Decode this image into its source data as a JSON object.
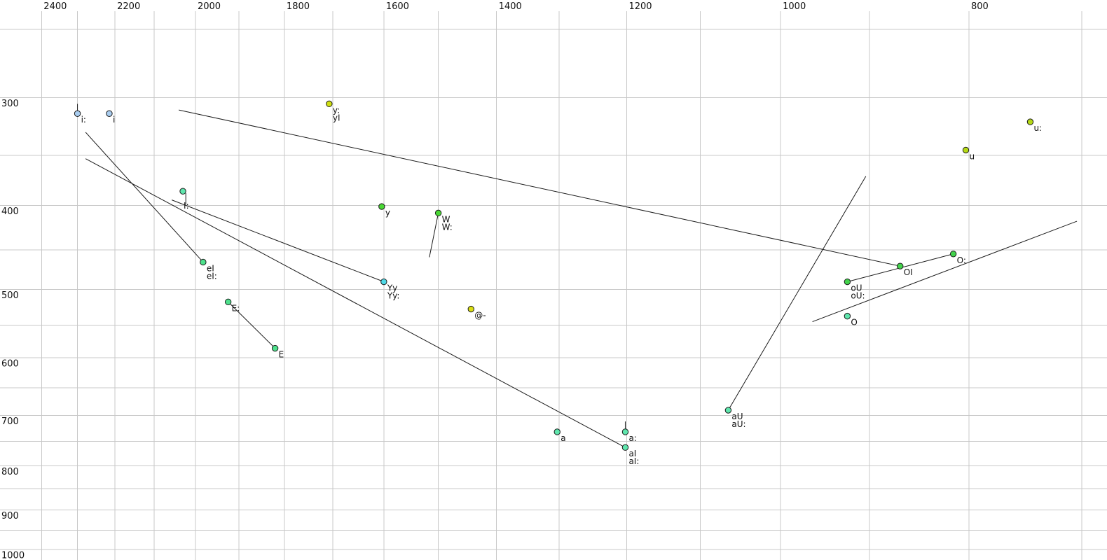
{
  "chart_data": {
    "type": "scatter",
    "title": "",
    "description": "Vowel formant chart: F2 (Hz) on top axis, reversed log scale; F1 (Hz) on left axis, log scale; labeled vowel tokens with trajectory lines",
    "x_axis": {
      "position": "top",
      "scale": "log-reversed",
      "tick_labels": [
        "2400",
        "2200",
        "2000",
        "1800",
        "1600",
        "1400",
        "1200",
        "1000",
        "800"
      ],
      "tick_values": [
        2400,
        2200,
        2000,
        1800,
        1600,
        1400,
        1200,
        1000,
        800
      ],
      "grid_step": 100,
      "grid_min": 700,
      "grid_max": 2400,
      "range_shown": [
        2520,
        680
      ]
    },
    "y_axis": {
      "position": "left",
      "scale": "log",
      "tick_labels": [
        "300",
        "400",
        "500",
        "600",
        "700",
        "800",
        "900",
        "1000"
      ],
      "tick_values": [
        300,
        400,
        500,
        600,
        700,
        800,
        900,
        1000
      ],
      "grid_step": 50,
      "grid_min": 250,
      "grid_max": 1000,
      "range_shown": [
        245,
        1030
      ]
    },
    "grid_color": "#c8c8c8",
    "line_color": "#1a1a1a",
    "points": [
      {
        "name": "i-long",
        "labels": [
          "i:"
        ],
        "f2": 2300,
        "f1": 313,
        "color": "#a9cdf0"
      },
      {
        "name": "i",
        "labels": [
          "i"
        ],
        "f2": 2215,
        "f1": 313,
        "color": "#a9cdf0"
      },
      {
        "name": "I-long",
        "labels": [
          "I:"
        ],
        "f2": 2030,
        "f1": 385,
        "color": "#5fe6ad",
        "label_dx": 1,
        "label_dy": 25
      },
      {
        "name": "y-long-yI",
        "labels": [
          "y:",
          "yI"
        ],
        "f2": 1707,
        "f1": 305,
        "color": "#cfdf12"
      },
      {
        "name": "y",
        "labels": [
          "y"
        ],
        "f2": 1604,
        "f1": 401,
        "color": "#49d834"
      },
      {
        "name": "W",
        "labels": [
          "W",
          "W:"
        ],
        "f2": 1500,
        "f1": 408,
        "color": "#49d834"
      },
      {
        "name": "eI",
        "labels": [
          "eI",
          "eI:"
        ],
        "f2": 1982,
        "f1": 465,
        "color": "#4ee18c"
      },
      {
        "name": "Yy",
        "labels": [
          "Yy",
          "Yy:"
        ],
        "f2": 1600,
        "f1": 490,
        "color": "#4fd9e7"
      },
      {
        "name": "E-long",
        "labels": [
          "E:"
        ],
        "f2": 1924,
        "f1": 517,
        "color": "#4ee18c"
      },
      {
        "name": "E",
        "labels": [
          "E"
        ],
        "f2": 1820,
        "f1": 585,
        "color": "#4ee18c"
      },
      {
        "name": "schwa",
        "labels": [
          "@-"
        ],
        "f2": 1443,
        "f1": 527,
        "color": "#dade12"
      },
      {
        "name": "u-long",
        "labels": [
          "u:"
        ],
        "f2": 744,
        "f1": 320,
        "color": "#b5d916"
      },
      {
        "name": "u",
        "labels": [
          "u"
        ],
        "f2": 803,
        "f1": 345,
        "color": "#b5d916"
      },
      {
        "name": "O-long",
        "labels": [
          "O:"
        ],
        "f2": 815,
        "f1": 455,
        "color": "#42d24b"
      },
      {
        "name": "OI",
        "labels": [
          "OI"
        ],
        "f2": 868,
        "f1": 470,
        "color": "#42d24b"
      },
      {
        "name": "oU",
        "labels": [
          "oU",
          "oU:"
        ],
        "f2": 924,
        "f1": 490,
        "color": "#42d24b"
      },
      {
        "name": "O",
        "labels": [
          "O"
        ],
        "f2": 924,
        "f1": 537,
        "color": "#5fe6ad"
      },
      {
        "name": "aU",
        "labels": [
          "aU",
          "aU:"
        ],
        "f2": 1064,
        "f1": 690,
        "color": "#5fe6ad"
      },
      {
        "name": "a",
        "labels": [
          "a"
        ],
        "f2": 1303,
        "f1": 731,
        "color": "#5fe6ad"
      },
      {
        "name": "a-long",
        "labels": [
          "a:"
        ],
        "f2": 1202,
        "f1": 731,
        "color": "#5fe6ad"
      },
      {
        "name": "aI",
        "labels": [
          "aI",
          "aI:"
        ],
        "f2": 1202,
        "f1": 762,
        "color": "#5fe6ad"
      }
    ],
    "segments": [
      {
        "name": "line-to-OI",
        "from": {
          "f2": 2040,
          "f1": 310
        },
        "to": {
          "f2": 868,
          "f1": 470
        }
      },
      {
        "name": "line-to-eI",
        "from": {
          "f2": 2278,
          "f1": 329
        },
        "to": {
          "f2": 1982,
          "f1": 465
        }
      },
      {
        "name": "line-to-Yy",
        "from": {
          "f2": 2057,
          "f1": 394
        },
        "to": {
          "f2": 1600,
          "f1": 490
        }
      },
      {
        "name": "line-to-aI",
        "from": {
          "f2": 2278,
          "f1": 353
        },
        "to": {
          "f2": 1202,
          "f1": 762
        }
      },
      {
        "name": "line-E-long-to-E",
        "from": {
          "f2": 1924,
          "f1": 517
        },
        "to": {
          "f2": 1820,
          "f1": 585
        }
      },
      {
        "name": "line-from-W",
        "from": {
          "f2": 1500,
          "f1": 408
        },
        "to": {
          "f2": 1516,
          "f1": 459
        }
      },
      {
        "name": "line-from-aU",
        "from": {
          "f2": 1064,
          "f1": 690
        },
        "to": {
          "f2": 904,
          "f1": 370
        }
      },
      {
        "name": "line-through-O-long",
        "from": {
          "f2": 963,
          "f1": 545
        },
        "to": {
          "f2": 704,
          "f1": 417
        }
      },
      {
        "name": "line-oU-to-O-long",
        "from": {
          "f2": 924,
          "f1": 490
        },
        "to": {
          "f2": 815,
          "f1": 455
        }
      },
      {
        "name": "tick-i-long",
        "from": {
          "f2": 2300,
          "f1": 305
        },
        "to": {
          "f2": 2300,
          "f1": 313
        }
      },
      {
        "name": "tick-I-long",
        "from": {
          "f2": 2023,
          "f1": 387
        },
        "to": {
          "f2": 2023,
          "f1": 399
        }
      },
      {
        "name": "tick-a-long",
        "from": {
          "f2": 1202,
          "f1": 711
        },
        "to": {
          "f2": 1202,
          "f1": 727
        }
      }
    ]
  }
}
